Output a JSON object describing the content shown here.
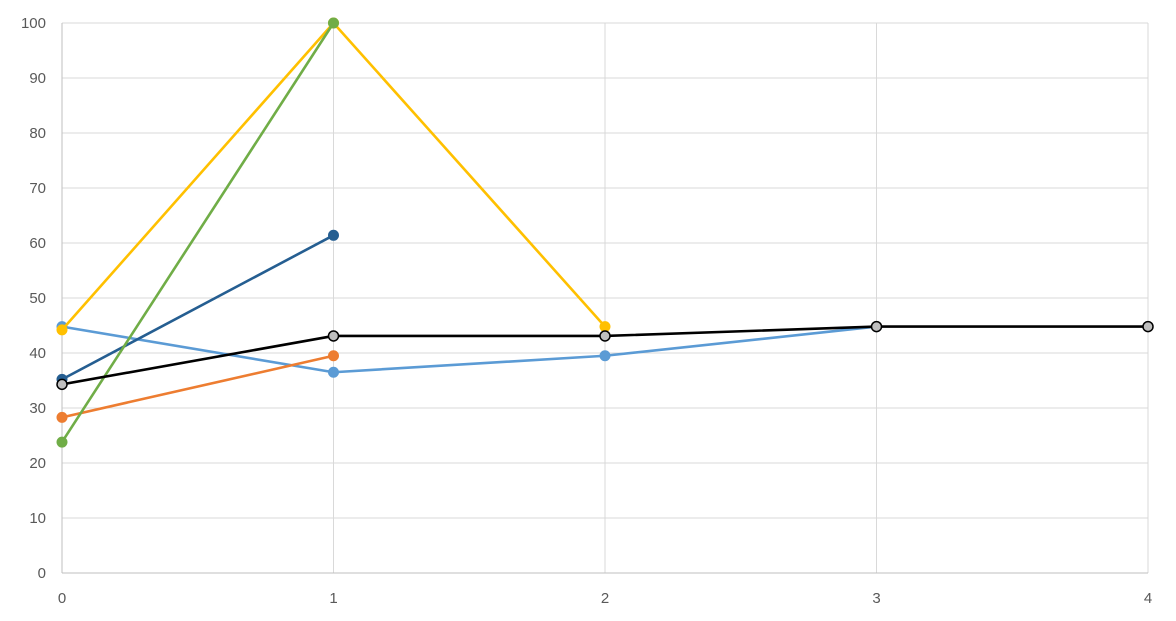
{
  "chart_data": {
    "type": "line",
    "title": "",
    "xlabel": "",
    "ylabel": "",
    "xlim": [
      0,
      4
    ],
    "ylim": [
      0,
      100
    ],
    "x_ticks": [
      "0",
      "1",
      "2",
      "3",
      "4"
    ],
    "y_ticks": [
      "0",
      "10",
      "20",
      "30",
      "40",
      "50",
      "60",
      "70",
      "80",
      "90",
      "100"
    ],
    "grid": true,
    "legend": "none",
    "series": [
      {
        "color": "#5B9BD5",
        "marker_fill": "#5B9BD5",
        "points": [
          [
            0,
            44.8
          ],
          [
            1,
            36.5
          ],
          [
            2,
            39.5
          ],
          [
            3,
            44.8
          ]
        ]
      },
      {
        "color": "#ED7D31",
        "marker_fill": "#ED7D31",
        "points": [
          [
            0,
            28.3
          ],
          [
            1,
            39.5
          ]
        ]
      },
      {
        "color": "#255E91",
        "marker_fill": "#255E91",
        "points": [
          [
            0,
            35.2
          ],
          [
            1,
            61.4
          ]
        ]
      },
      {
        "color": "#FFC000",
        "marker_fill": "#FFC000",
        "points": [
          [
            0,
            44.2
          ],
          [
            1,
            100
          ],
          [
            2,
            44.8
          ]
        ]
      },
      {
        "color": "#70AD47",
        "marker_fill": "#70AD47",
        "points": [
          [
            0,
            23.8
          ],
          [
            1,
            100
          ]
        ]
      },
      {
        "color": "#000000",
        "marker_fill": "#BFBFBF",
        "points": [
          [
            0,
            34.3
          ],
          [
            1,
            43.1
          ],
          [
            2,
            43.1
          ],
          [
            3,
            44.8
          ],
          [
            4,
            44.8
          ]
        ]
      }
    ]
  }
}
